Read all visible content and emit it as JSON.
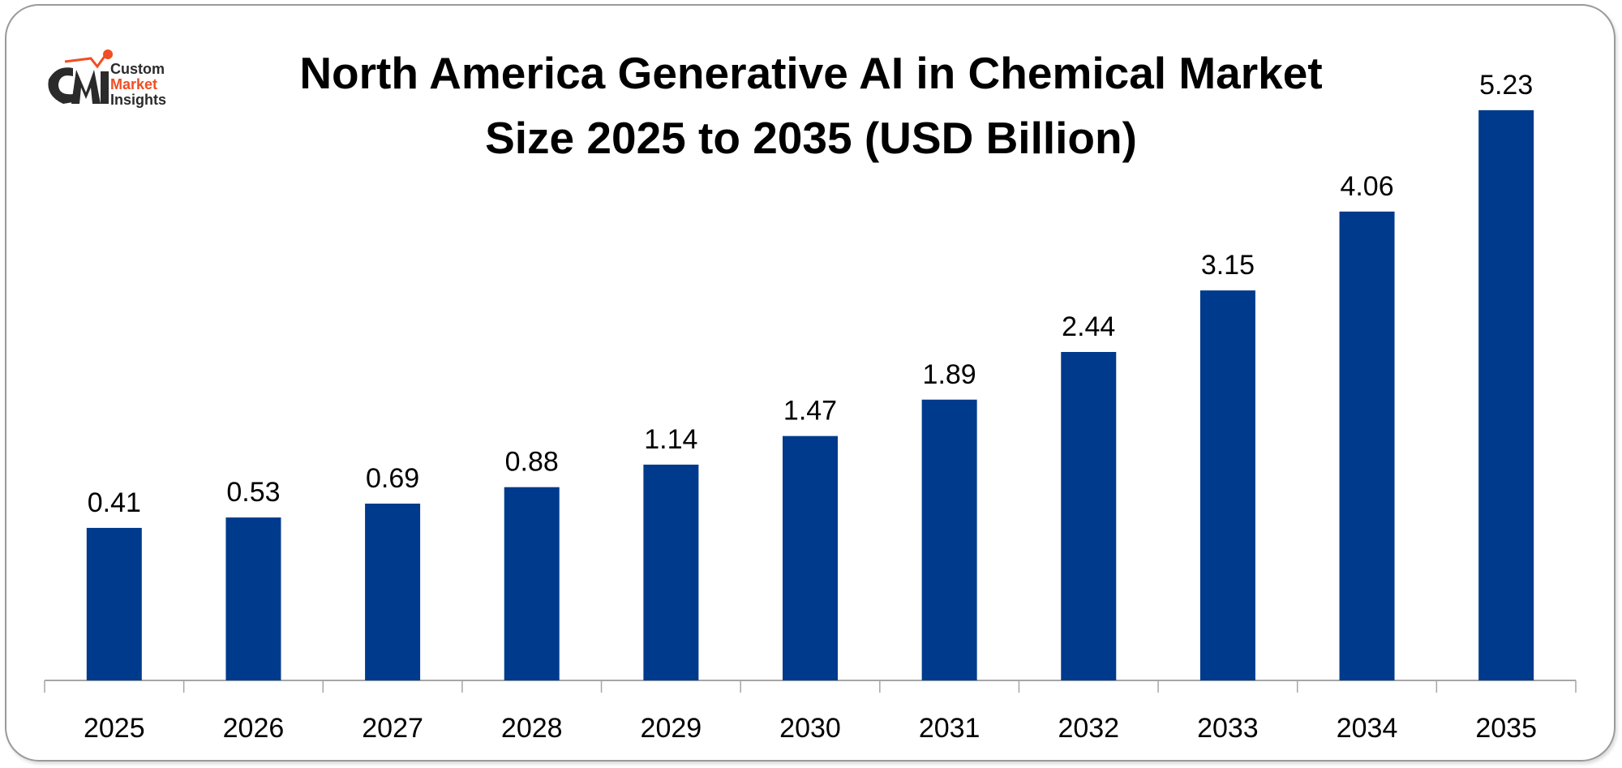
{
  "logo": {
    "line1": "Custom",
    "line2": "Market",
    "line3": "Insights",
    "mark": "CMI",
    "colors": {
      "dark": "#2b2b2b",
      "accent": "#f04e23"
    }
  },
  "chart_data": {
    "type": "bar",
    "title_line1": "North America Generative AI in Chemical Market",
    "title_line2": "Size 2025 to 2035 (USD Billion)",
    "categories": [
      "2025",
      "2026",
      "2027",
      "2028",
      "2029",
      "2030",
      "2031",
      "2032",
      "2033",
      "2034",
      "2035"
    ],
    "values": [
      0.41,
      0.53,
      0.69,
      0.88,
      1.14,
      1.47,
      1.89,
      2.44,
      3.15,
      4.06,
      5.23
    ],
    "xlabel": "",
    "ylabel": "",
    "ylim": [
      -1.35,
      5.5
    ],
    "grid": false,
    "legend": "none",
    "bar_color": "#003a8c"
  }
}
